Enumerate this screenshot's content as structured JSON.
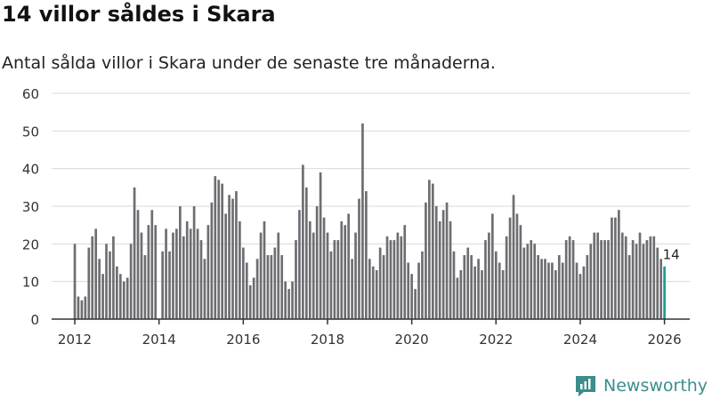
{
  "header": {
    "title": "14 villor såldes i Skara",
    "subtitle": "Antal sålda villor i Skara under de senaste tre månaderna."
  },
  "brand": {
    "name": "Newsworthy"
  },
  "colors": {
    "bar": "#6e6d72",
    "highlight": "#169c93",
    "grid": "#d9d9d9",
    "axis": "#333333"
  },
  "chart_data": {
    "type": "bar",
    "x_start": "2012-01",
    "interval": "month",
    "xlim": [
      2011.45,
      2026.6
    ],
    "ylim": [
      0,
      60
    ],
    "y_ticks": [
      0,
      10,
      20,
      30,
      40,
      50,
      60
    ],
    "x_ticks": [
      {
        "value": 2012.0,
        "label": "2012"
      },
      {
        "value": 2014.0,
        "label": "2014"
      },
      {
        "value": 2016.0,
        "label": "2016"
      },
      {
        "value": 2018.0,
        "label": "2018"
      },
      {
        "value": 2020.0,
        "label": "2020"
      },
      {
        "value": 2022.0,
        "label": "2022"
      },
      {
        "value": 2024.0,
        "label": "2024"
      },
      {
        "value": 2026.0,
        "label": "2026"
      }
    ],
    "values": [
      20,
      6,
      5,
      6,
      19,
      22,
      24,
      16,
      12,
      20,
      18,
      22,
      14,
      12,
      10,
      11,
      20,
      35,
      29,
      23,
      17,
      25,
      29,
      25,
      0,
      18,
      24,
      18,
      23,
      24,
      30,
      22,
      26,
      24,
      30,
      24,
      21,
      16,
      25,
      31,
      38,
      37,
      36,
      28,
      33,
      32,
      34,
      26,
      19,
      15,
      9,
      11,
      16,
      23,
      26,
      17,
      17,
      19,
      23,
      17,
      10,
      8,
      10,
      21,
      29,
      41,
      35,
      26,
      23,
      30,
      39,
      27,
      23,
      18,
      21,
      21,
      26,
      25,
      28,
      16,
      23,
      32,
      52,
      34,
      16,
      14,
      13,
      19,
      17,
      22,
      21,
      21,
      23,
      22,
      25,
      15,
      12,
      8,
      15,
      18,
      31,
      37,
      36,
      30,
      26,
      29,
      31,
      26,
      18,
      11,
      13,
      17,
      19,
      17,
      14,
      16,
      13,
      21,
      23,
      28,
      18,
      15,
      13,
      22,
      27,
      33,
      28,
      25,
      19,
      20,
      21,
      20,
      17,
      16,
      16,
      15,
      15,
      13,
      17,
      15,
      21,
      22,
      21,
      15,
      12,
      14,
      17,
      20,
      23,
      23,
      21,
      21,
      21,
      27,
      27,
      29,
      23,
      22,
      17,
      21,
      20,
      23,
      20,
      21,
      22,
      22,
      19,
      16,
      14
    ],
    "last_value_label": "14"
  }
}
